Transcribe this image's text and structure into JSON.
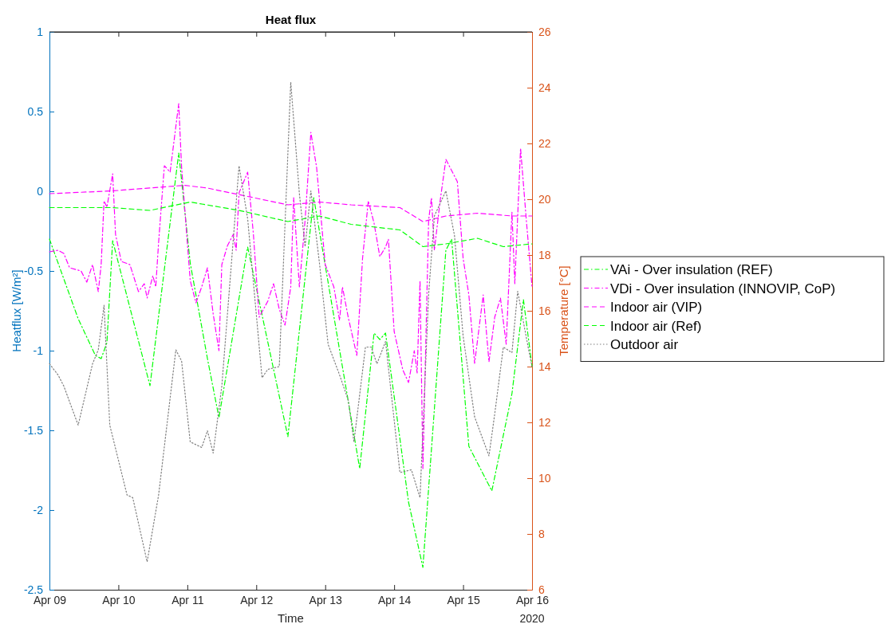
{
  "chart_data": {
    "type": "line",
    "title": "Heat flux",
    "xlabel": "Time",
    "ylabel": "Heatflux [W/m²]",
    "y2label": "Temperature [°C]",
    "annotations": [
      "2020"
    ],
    "xlim": [
      "2020-04-09T00:00",
      "2020-04-16T00:00"
    ],
    "xticks": [
      {
        "value": "2020-04-09",
        "label": "Apr 09"
      },
      {
        "value": "2020-04-10",
        "label": "Apr 10"
      },
      {
        "value": "2020-04-11",
        "label": "Apr 11"
      },
      {
        "value": "2020-04-12",
        "label": "Apr 12"
      },
      {
        "value": "2020-04-13",
        "label": "Apr 13"
      },
      {
        "value": "2020-04-14",
        "label": "Apr 14"
      },
      {
        "value": "2020-04-15",
        "label": "Apr 15"
      },
      {
        "value": "2020-04-16",
        "label": "Apr 16"
      }
    ],
    "ylim": [
      -2.5,
      1
    ],
    "yticks": [
      -2.5,
      -2,
      -1.5,
      -1,
      -0.5,
      0,
      0.5,
      1
    ],
    "y2lim": [
      6,
      26
    ],
    "y2ticks": [
      6,
      8,
      10,
      12,
      14,
      16,
      18,
      20,
      22,
      24,
      26
    ],
    "grid": false,
    "legend": "right",
    "marker": "none",
    "series": [
      {
        "name": "VAi - Over insulation (REF)",
        "color": "#00ff00",
        "line_style": "dashdot",
        "x": [
          "2020-04-09T00:00",
          "2020-04-09T10:00",
          "2020-04-09T16:00",
          "2020-04-09T18:00",
          "2020-04-09T20:00",
          "2020-04-09T22:00",
          "2020-04-10T11:00",
          "2020-04-10T21:00",
          "2020-04-11T01:00",
          "2020-04-11T07:00",
          "2020-04-11T11:00",
          "2020-04-11T21:00",
          "2020-04-12T11:00",
          "2020-04-12T20:00",
          "2020-04-13T12:00",
          "2020-04-13T17:00",
          "2020-04-13T19:00",
          "2020-04-13T21:00",
          "2020-04-14T05:00",
          "2020-04-14T10:00",
          "2020-04-14T18:00",
          "2020-04-14T20:00",
          "2020-04-15T02:00",
          "2020-04-15T10:00",
          "2020-04-15T17:00",
          "2020-04-15T21:00",
          "2020-04-16T00:00"
        ],
        "values": [
          -0.3,
          -0.8,
          -1.03,
          -1.05,
          -0.95,
          -0.31,
          -1.22,
          0.24,
          -0.45,
          -1.05,
          -1.42,
          -0.35,
          -1.54,
          -0.04,
          -1.74,
          -0.89,
          -0.93,
          -0.89,
          -1.95,
          -2.36,
          -0.37,
          -0.3,
          -1.6,
          -1.88,
          -1.27,
          -0.68,
          -1.1
        ]
      },
      {
        "name": "VDi - Over insulation (INNOVIP, CoP)",
        "color": "#ff00ff",
        "line_style": "dashdot",
        "x": [
          "2020-04-09T00:00",
          "2020-04-09T03:00",
          "2020-04-09T05:00",
          "2020-04-09T07:00",
          "2020-04-09T11:00",
          "2020-04-09T13:00",
          "2020-04-09T15:00",
          "2020-04-09T17:00",
          "2020-04-09T18:00",
          "2020-04-09T19:00",
          "2020-04-09T20:00",
          "2020-04-09T22:00",
          "2020-04-09T23:00",
          "2020-04-10T01:00",
          "2020-04-10T04:00",
          "2020-04-10T07:00",
          "2020-04-10T09:00",
          "2020-04-10T10:00",
          "2020-04-10T12:00",
          "2020-04-10T13:00",
          "2020-04-10T14:00",
          "2020-04-10T16:00",
          "2020-04-10T18:00",
          "2020-04-10T21:00",
          "2020-04-10T22:00",
          "2020-04-11T01:00",
          "2020-04-11T03:00",
          "2020-04-11T05:00",
          "2020-04-11T07:00",
          "2020-04-11T09:00",
          "2020-04-11T11:00",
          "2020-04-11T12:00",
          "2020-04-11T14:00",
          "2020-04-11T16:00",
          "2020-04-11T17:00",
          "2020-04-11T18:00",
          "2020-04-11T21:00",
          "2020-04-11T23:00",
          "2020-04-12T01:00",
          "2020-04-12T04:00",
          "2020-04-12T06:00",
          "2020-04-12T08:00",
          "2020-04-12T10:00",
          "2020-04-12T12:00",
          "2020-04-12T13:00",
          "2020-04-12T15:00",
          "2020-04-12T17:00",
          "2020-04-12T19:00",
          "2020-04-12T21:00",
          "2020-04-13T00:00",
          "2020-04-13T03:00",
          "2020-04-13T05:00",
          "2020-04-13T06:00",
          "2020-04-13T08:00",
          "2020-04-13T11:00",
          "2020-04-13T13:00",
          "2020-04-13T15:00",
          "2020-04-13T17:00",
          "2020-04-13T19:00",
          "2020-04-13T21:00",
          "2020-04-13T22:00",
          "2020-04-14T00:00",
          "2020-04-14T03:00",
          "2020-04-14T05:00",
          "2020-04-14T07:00",
          "2020-04-14T08:00",
          "2020-04-14T09:00",
          "2020-04-14T10:00",
          "2020-04-14T12:00",
          "2020-04-14T13:00",
          "2020-04-14T14:00",
          "2020-04-14T16:00",
          "2020-04-14T18:00",
          "2020-04-14T20:00",
          "2020-04-14T22:00",
          "2020-04-15T00:00",
          "2020-04-15T02:00",
          "2020-04-15T04:00",
          "2020-04-15T07:00",
          "2020-04-15T09:00",
          "2020-04-15T11:00",
          "2020-04-15T13:00",
          "2020-04-15T15:00",
          "2020-04-15T17:00",
          "2020-04-15T18:00",
          "2020-04-15T20:00",
          "2020-04-15T22:00",
          "2020-04-16T00:00"
        ],
        "values": [
          -0.38,
          -0.37,
          -0.39,
          -0.48,
          -0.5,
          -0.57,
          -0.46,
          -0.63,
          -0.46,
          -0.06,
          -0.1,
          0.11,
          -0.27,
          -0.44,
          -0.46,
          -0.63,
          -0.58,
          -0.67,
          -0.53,
          -0.6,
          -0.32,
          0.16,
          0.12,
          0.55,
          0.15,
          -0.56,
          -0.7,
          -0.6,
          -0.48,
          -0.77,
          -1.0,
          -0.46,
          -0.34,
          -0.27,
          -0.37,
          -0.01,
          0.12,
          -0.27,
          -0.79,
          -0.69,
          -0.58,
          -0.74,
          -0.84,
          -0.6,
          -0.04,
          -0.6,
          -0.18,
          0.37,
          0.15,
          -0.46,
          -0.6,
          -0.81,
          -0.6,
          -0.79,
          -1.03,
          -0.42,
          -0.06,
          -0.2,
          -0.41,
          -0.35,
          -0.3,
          -0.88,
          -1.12,
          -1.2,
          -1.0,
          -1.14,
          -0.56,
          -1.74,
          -0.18,
          -0.04,
          -0.37,
          -0.06,
          0.2,
          0.13,
          0.06,
          -0.42,
          -0.65,
          -1.08,
          -0.65,
          -1.07,
          -0.79,
          -0.67,
          -0.96,
          -0.13,
          -0.58,
          0.27,
          -0.18,
          -0.6
        ]
      },
      {
        "name": "Indoor air (VIP)",
        "color": "#ff00ff",
        "line_style": "dashed",
        "axis": "y2",
        "x": [
          "2020-04-09T00:00",
          "2020-04-09T22:00",
          "2020-04-10T23:00",
          "2020-04-11T07:00",
          "2020-04-11T21:00",
          "2020-04-12T11:00",
          "2020-04-12T22:00",
          "2020-04-13T09:00",
          "2020-04-14T02:00",
          "2020-04-14T10:00",
          "2020-04-14T18:00",
          "2020-04-15T05:00",
          "2020-04-15T17:00",
          "2020-04-16T00:00"
        ],
        "values": [
          20.2,
          20.3,
          20.5,
          20.4,
          20.1,
          19.8,
          19.9,
          19.8,
          19.7,
          19.2,
          19.4,
          19.5,
          19.4,
          19.4
        ]
      },
      {
        "name": "Indoor air (Ref)",
        "color": "#00ff00",
        "line_style": "dashed",
        "axis": "y2",
        "x": [
          "2020-04-09T00:00",
          "2020-04-09T22:00",
          "2020-04-10T11:00",
          "2020-04-11T01:00",
          "2020-04-11T18:00",
          "2020-04-12T11:00",
          "2020-04-12T22:00",
          "2020-04-13T09:00",
          "2020-04-14T02:00",
          "2020-04-14T10:00",
          "2020-04-14T18:00",
          "2020-04-15T05:00",
          "2020-04-15T14:00",
          "2020-04-16T00:00"
        ],
        "values": [
          19.7,
          19.7,
          19.6,
          19.9,
          19.6,
          19.2,
          19.4,
          19.1,
          18.9,
          18.3,
          18.4,
          18.6,
          18.3,
          18.4
        ]
      },
      {
        "name": "Outdoor air",
        "color": "#808080",
        "line_style": "dotted",
        "axis": "y2",
        "x": [
          "2020-04-09T00:00",
          "2020-04-09T03:00",
          "2020-04-09T05:00",
          "2020-04-09T10:00",
          "2020-04-09T15:00",
          "2020-04-09T17:00",
          "2020-04-09T19:00",
          "2020-04-09T21:00",
          "2020-04-10T03:00",
          "2020-04-10T05:00",
          "2020-04-10T10:00",
          "2020-04-10T14:00",
          "2020-04-10T20:00",
          "2020-04-10T22:00",
          "2020-04-11T01:00",
          "2020-04-11T05:00",
          "2020-04-11T07:00",
          "2020-04-11T09:00",
          "2020-04-11T12:00",
          "2020-04-11T18:00",
          "2020-04-11T21:00",
          "2020-04-12T02:00",
          "2020-04-12T04:00",
          "2020-04-12T08:00",
          "2020-04-12T12:00",
          "2020-04-12T15:00",
          "2020-04-12T17:00",
          "2020-04-12T19:00",
          "2020-04-12T22:00",
          "2020-04-13T01:00",
          "2020-04-13T05:00",
          "2020-04-13T08:00",
          "2020-04-13T10:00",
          "2020-04-13T14:00",
          "2020-04-13T16:00",
          "2020-04-13T18:00",
          "2020-04-13T21:00",
          "2020-04-14T02:00",
          "2020-04-14T06:00",
          "2020-04-14T09:00",
          "2020-04-14T12:00",
          "2020-04-14T14:00",
          "2020-04-14T18:00",
          "2020-04-14T21:00",
          "2020-04-15T00:00",
          "2020-04-15T04:00",
          "2020-04-15T09:00",
          "2020-04-15T11:00",
          "2020-04-15T14:00",
          "2020-04-15T17:00",
          "2020-04-15T19:00",
          "2020-04-15T23:00",
          "2020-04-16T00:00"
        ],
        "values": [
          14.1,
          13.7,
          13.3,
          11.9,
          14.1,
          14.6,
          16.2,
          11.9,
          9.4,
          9.3,
          7.0,
          9.4,
          14.6,
          14.2,
          11.3,
          11.1,
          11.7,
          10.9,
          13.3,
          21.2,
          19.3,
          13.6,
          13.9,
          14.0,
          24.2,
          20.2,
          18.3,
          20.3,
          17.7,
          14.8,
          13.7,
          12.8,
          11.3,
          14.7,
          14.7,
          14.1,
          14.9,
          10.2,
          10.3,
          9.3,
          16.6,
          19.4,
          20.3,
          18.7,
          15.1,
          12.2,
          10.8,
          12.3,
          14.7,
          14.5,
          16.7,
          14.5,
          14.0
        ]
      }
    ]
  }
}
